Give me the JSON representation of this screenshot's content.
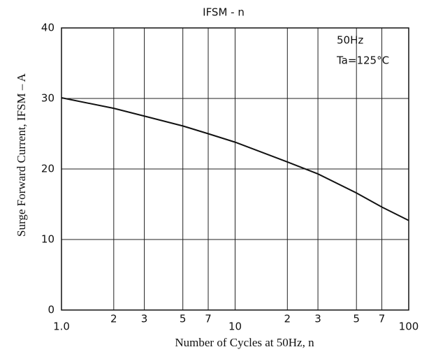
{
  "chart_data": {
    "type": "line",
    "title": "IFSM - n",
    "x_label": "Number of Cycles at 50Hz, n",
    "y_label": "Surge Forward Current, IFSM – A",
    "annotations": [
      "50Hz",
      "Ta=125°C"
    ],
    "xscale": "log",
    "grid": true,
    "xlim": [
      1,
      100
    ],
    "ylim": [
      0,
      40
    ],
    "xticks": [
      {
        "value": 1,
        "label": "1.0"
      },
      2,
      3,
      5,
      7,
      10,
      {
        "value": 20,
        "label": "2"
      },
      {
        "value": 30,
        "label": "3"
      },
      {
        "value": 50,
        "label": "5"
      },
      {
        "value": 70,
        "label": "7"
      },
      100
    ],
    "yticks": [
      0,
      10,
      20,
      30,
      40
    ],
    "x": [
      1,
      2,
      3,
      5,
      7,
      10,
      20,
      30,
      50,
      70,
      100
    ],
    "series": [
      {
        "color": "#111111",
        "values": [
          30.1,
          28.6,
          27.5,
          26.1,
          25,
          23.8,
          21,
          19.3,
          16.6,
          14.6,
          12.7
        ]
      }
    ]
  }
}
